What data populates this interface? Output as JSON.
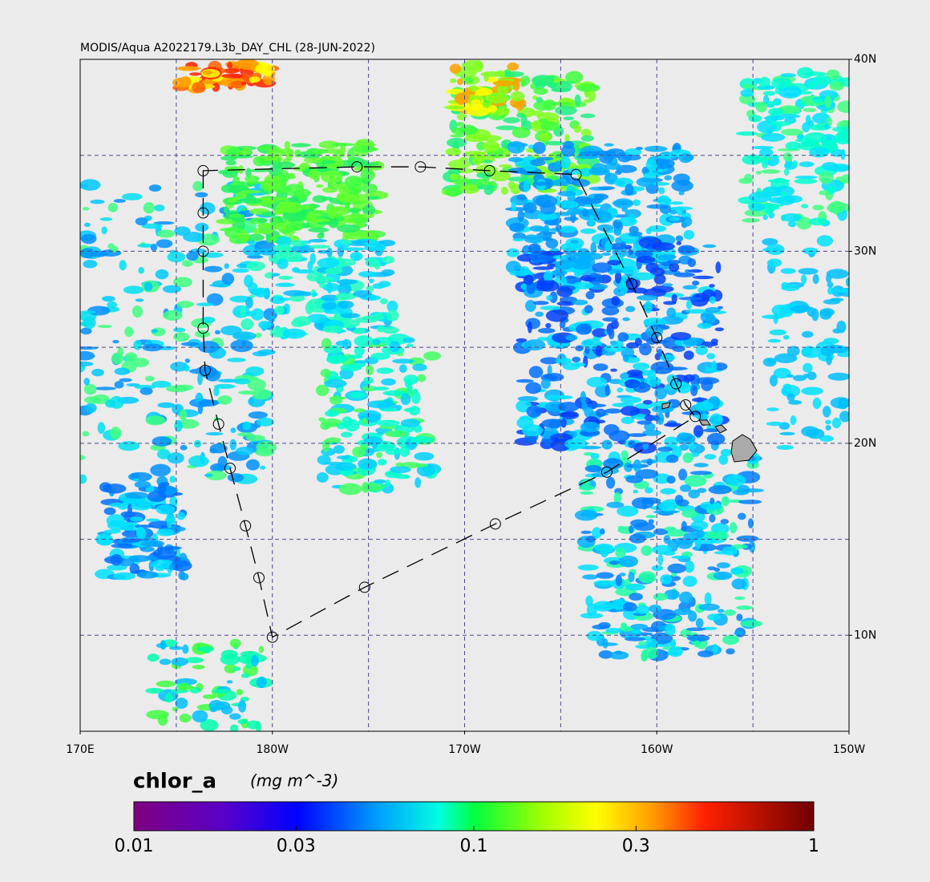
{
  "title": "MODIS/Aqua A2022179.L3b_DAY_CHL (28-JUN-2022)",
  "map": {
    "lon_range": [
      170,
      210
    ],
    "lat_range": [
      5,
      40
    ],
    "lon_grid": [
      175,
      180,
      185,
      190,
      195,
      200,
      205
    ],
    "lat_grid": [
      10,
      15,
      20,
      25,
      30,
      35
    ],
    "lon_ticks": [
      {
        "value": 170,
        "label": "170E"
      },
      {
        "value": 180,
        "label": "180W"
      },
      {
        "value": 190,
        "label": "170W"
      },
      {
        "value": 200,
        "label": "160W"
      },
      {
        "value": 210,
        "label": "150W"
      }
    ],
    "lat_ticks": [
      {
        "value": 40,
        "label": "40N"
      },
      {
        "value": 30,
        "label": "30N"
      },
      {
        "value": 20,
        "label": "20N"
      },
      {
        "value": 10,
        "label": "10N"
      }
    ]
  },
  "cruise_track": {
    "lon": [
      176.4,
      176.4,
      176.4,
      176.4,
      176.5,
      177.2,
      177.8,
      178.6,
      179.3,
      180.0,
      184.8,
      191.6,
      197.4,
      202.0,
      201.5,
      201.0,
      200.0,
      198.7,
      195.8,
      191.3,
      187.7,
      184.4
    ],
    "lat": [
      34.2,
      32.0,
      30.0,
      26.0,
      23.8,
      21.0,
      18.7,
      15.7,
      13.0,
      9.9,
      12.5,
      15.8,
      18.5,
      21.4,
      22.0,
      23.1,
      25.5,
      28.3,
      34.0,
      34.2,
      34.4,
      34.4
    ]
  },
  "colorbar": {
    "name": "chlor_a",
    "units": "(mg m^-3)",
    "range": [
      0.01,
      1
    ],
    "log": true,
    "ticks": [
      0.01,
      0.03,
      0.1,
      0.3,
      1
    ]
  }
}
